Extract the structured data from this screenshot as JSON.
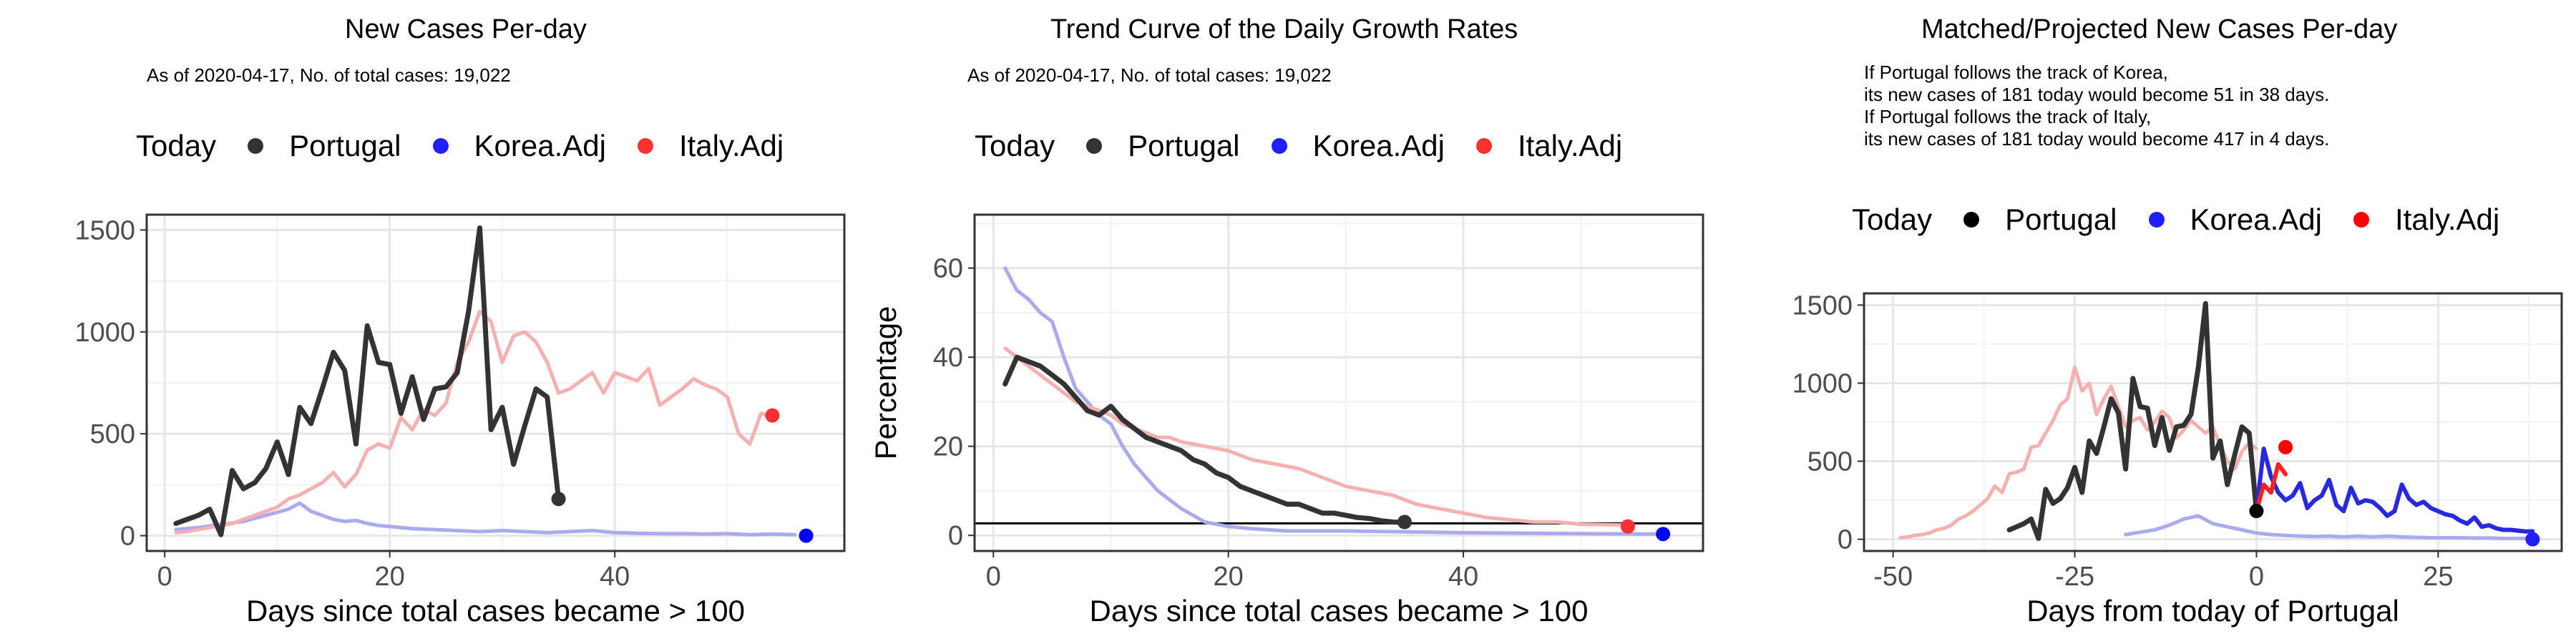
{
  "legend": {
    "title": "Today",
    "items": [
      {
        "label": "Portugal",
        "color": "#333333"
      },
      {
        "label": "Korea.Adj",
        "color": "#1f1fff"
      },
      {
        "label": "Italy.Adj",
        "color": "#ff3030"
      }
    ]
  },
  "panels": [
    {
      "title": "New Cases Per-day",
      "subtitle_lines": [
        "As of 2020-04-17, No. of total cases: 19,022"
      ],
      "legend_dot_colors": [
        "#333333",
        "#1f1fff",
        "#ff3030"
      ]
    },
    {
      "title": "Trend Curve of the Daily Growth Rates",
      "subtitle_lines": [
        "As of 2020-04-17, No. of total cases: 19,022"
      ],
      "legend_dot_colors": [
        "#333333",
        "#1f1fff",
        "#ff3030"
      ]
    },
    {
      "title": "Matched/Projected New Cases Per-day",
      "subtitle_lines": [
        "If Portugal follows the track of Korea,",
        "its new cases of 181 today would become 51 in 38 days.",
        "If Portugal follows the track of Italy,",
        "its new cases of 181 today would become 417 in 4 days."
      ],
      "legend_dot_colors": [
        "#000000",
        "#1f1fff",
        "#ff0000"
      ]
    }
  ],
  "chart_data": [
    {
      "type": "line",
      "title": "New Cases Per-day",
      "xlabel": "Days since total cases became > 100",
      "ylabel": "",
      "xlim": [
        -1.6,
        60.4
      ],
      "ylim": [
        -75,
        1575
      ],
      "xticks": [
        0,
        20,
        40
      ],
      "yticks": [
        0,
        500,
        1000,
        1500
      ],
      "grid": true,
      "series": [
        {
          "name": "Korea.Adj",
          "color": "#aaaaee",
          "width": 5,
          "x": [
            1,
            3,
            5,
            7,
            9,
            11,
            12,
            13,
            14,
            15,
            16,
            17,
            18,
            19,
            20,
            22,
            24,
            26,
            28,
            30,
            32,
            34,
            36,
            38,
            40,
            42,
            44,
            46,
            48,
            50,
            52,
            54,
            56
          ],
          "y": [
            30,
            40,
            55,
            70,
            100,
            130,
            160,
            120,
            100,
            80,
            70,
            75,
            60,
            50,
            45,
            35,
            30,
            25,
            20,
            25,
            20,
            15,
            20,
            25,
            15,
            12,
            10,
            10,
            8,
            10,
            5,
            8,
            5
          ]
        },
        {
          "name": "Italy.Adj",
          "color": "#f7b0b0",
          "width": 5,
          "x": [
            1,
            2,
            3,
            4,
            5,
            6,
            7,
            8,
            9,
            10,
            11,
            12,
            13,
            14,
            15,
            16,
            17,
            18,
            19,
            20,
            21,
            22,
            23,
            24,
            25,
            26,
            27,
            28,
            29,
            30,
            31,
            32,
            33,
            34,
            35,
            36,
            37,
            38,
            39,
            40,
            41,
            42,
            43,
            44,
            45,
            46,
            47,
            48,
            49,
            50,
            51,
            52,
            53,
            54
          ],
          "y": [
            15,
            20,
            30,
            40,
            50,
            60,
            80,
            100,
            120,
            140,
            180,
            200,
            230,
            260,
            310,
            240,
            300,
            420,
            450,
            430,
            580,
            520,
            620,
            590,
            650,
            850,
            950,
            1100,
            1050,
            850,
            980,
            1000,
            950,
            850,
            700,
            720,
            760,
            800,
            700,
            800,
            780,
            760,
            820,
            640,
            680,
            720,
            770,
            740,
            720,
            680,
            500,
            450,
            600,
            580
          ]
        },
        {
          "name": "Portugal",
          "color": "#333333",
          "width": 7,
          "x": [
            1,
            2,
            3,
            4,
            5,
            6,
            7,
            8,
            9,
            10,
            11,
            12,
            13,
            14,
            15,
            16,
            17,
            18,
            19,
            20,
            21,
            22,
            23,
            24,
            25,
            26,
            27,
            28,
            29,
            30,
            31,
            32,
            33,
            34,
            35
          ],
          "y": [
            60,
            80,
            100,
            130,
            5,
            320,
            230,
            260,
            330,
            460,
            300,
            630,
            550,
            720,
            900,
            810,
            450,
            1030,
            850,
            840,
            600,
            780,
            570,
            720,
            730,
            800,
            1100,
            1510,
            520,
            630,
            350,
            540,
            720,
            680,
            180
          ]
        }
      ],
      "today_points": [
        {
          "series": "Portugal",
          "x": 35,
          "y": 180,
          "color": "#333333"
        },
        {
          "series": "Korea.Adj",
          "x": 57,
          "y": 0,
          "color": "#0000ff"
        },
        {
          "series": "Italy.Adj",
          "x": 54,
          "y": 590,
          "color": "#ff3030"
        }
      ]
    },
    {
      "type": "line",
      "title": "Trend Curve of the Daily Growth Rates",
      "xlabel": "Days since total cases became > 100",
      "ylabel": "Percentage",
      "xlim": [
        -1.6,
        60.4
      ],
      "ylim": [
        -3.5,
        72
      ],
      "xticks": [
        0,
        20,
        40
      ],
      "yticks": [
        0,
        20,
        40,
        60
      ],
      "grid": true,
      "hline": 2.7,
      "series": [
        {
          "name": "Korea.Adj",
          "color": "#aaaaee",
          "width": 5,
          "x": [
            1,
            2,
            3,
            4,
            5,
            6,
            7,
            8,
            9,
            10,
            11,
            12,
            14,
            16,
            18,
            20,
            22,
            25,
            30,
            35,
            40,
            45,
            50,
            55,
            57
          ],
          "y": [
            60,
            55,
            53,
            50,
            48,
            40,
            33,
            30,
            27,
            25,
            20,
            16,
            10,
            6,
            3,
            2,
            1.5,
            1,
            1,
            0.8,
            0.6,
            0.5,
            0.4,
            0.3,
            0.3
          ]
        },
        {
          "name": "Italy.Adj",
          "color": "#f7b0b0",
          "width": 5,
          "x": [
            1,
            2,
            3,
            4,
            5,
            6,
            7,
            8,
            9,
            10,
            11,
            12,
            13,
            14,
            15,
            16,
            18,
            20,
            22,
            24,
            26,
            28,
            30,
            32,
            34,
            36,
            38,
            40,
            42,
            44,
            46,
            48,
            50,
            52,
            54
          ],
          "y": [
            42,
            40,
            38,
            36,
            34,
            32,
            30,
            29,
            28,
            27,
            25,
            24,
            23,
            22,
            22,
            21,
            20,
            19,
            17,
            16,
            15,
            13,
            11,
            10,
            9,
            7,
            6,
            5,
            4,
            3.5,
            3,
            3,
            2.5,
            2.4,
            2.3
          ]
        },
        {
          "name": "Portugal",
          "color": "#333333",
          "width": 7,
          "x": [
            1,
            2,
            3,
            4,
            5,
            6,
            7,
            8,
            9,
            10,
            11,
            12,
            13,
            14,
            15,
            16,
            17,
            18,
            19,
            20,
            21,
            22,
            23,
            24,
            25,
            26,
            27,
            28,
            29,
            30,
            31,
            32,
            33,
            34,
            35
          ],
          "y": [
            34,
            40,
            39,
            38,
            36,
            34,
            31,
            28,
            27,
            29,
            26,
            24,
            22,
            21,
            20,
            19,
            17,
            16,
            14,
            13,
            11,
            10,
            9,
            8,
            7,
            7,
            6,
            5,
            5,
            4.5,
            4,
            3.8,
            3.3,
            3,
            2.9
          ]
        }
      ],
      "today_points": [
        {
          "series": "Portugal",
          "x": 35,
          "y": 3,
          "color": "#333333"
        },
        {
          "series": "Korea.Adj",
          "x": 57,
          "y": 0.3,
          "color": "#0000ff"
        },
        {
          "series": "Italy.Adj",
          "x": 54,
          "y": 2,
          "color": "#ff3030"
        }
      ]
    },
    {
      "type": "line",
      "title": "Matched/Projected New Cases Per-day",
      "xlabel": "Days from today of Portugal",
      "ylabel": "",
      "xlim": [
        -54,
        42
      ],
      "ylim": [
        -75,
        1575
      ],
      "xticks": [
        -50,
        -25,
        0,
        25
      ],
      "yticks": [
        0,
        500,
        1000,
        1500
      ],
      "grid": true,
      "series": [
        {
          "name": "Italy.Adj",
          "color": "#f7b0b0",
          "width": 5,
          "x": [
            -49,
            -48,
            -47,
            -46,
            -45,
            -44,
            -43,
            -42,
            -41,
            -40,
            -39,
            -38,
            -37,
            -36,
            -35,
            -34,
            -33,
            -32,
            -31,
            -30,
            -29,
            -28,
            -27,
            -26,
            -25,
            -24,
            -23,
            -22,
            -21,
            -20,
            -19,
            -18,
            -17,
            -16,
            -15,
            -14,
            -13,
            -12,
            -11,
            -10,
            -9,
            -8,
            -7,
            -6,
            -5,
            -4,
            -3,
            -2,
            -1,
            0
          ],
          "y": [
            10,
            15,
            25,
            30,
            40,
            60,
            70,
            90,
            130,
            150,
            180,
            220,
            260,
            340,
            300,
            420,
            430,
            450,
            590,
            600,
            680,
            760,
            860,
            900,
            1100,
            950,
            1000,
            800,
            900,
            980,
            850,
            720,
            760,
            780,
            700,
            750,
            820,
            780,
            650,
            700,
            760,
            720,
            680,
            720,
            600,
            500,
            450,
            560,
            620,
            580
          ]
        },
        {
          "name": "Korea.Adj",
          "color": "#aaaaee",
          "width": 5,
          "x": [
            -18,
            -16,
            -14,
            -12,
            -10,
            -8,
            -6,
            -4,
            -2,
            0,
            2,
            4,
            6,
            8,
            10,
            12,
            14,
            16,
            18,
            20,
            22,
            24,
            26,
            28,
            30,
            32,
            34,
            36,
            38
          ],
          "y": [
            30,
            45,
            60,
            90,
            130,
            150,
            100,
            80,
            60,
            40,
            30,
            25,
            20,
            18,
            20,
            15,
            20,
            15,
            20,
            15,
            12,
            10,
            10,
            10,
            8,
            8,
            5,
            5,
            5
          ]
        },
        {
          "name": "Portugal",
          "color": "#333333",
          "width": 7,
          "x": [
            -34,
            -33,
            -32,
            -31,
            -30,
            -29,
            -28,
            -27,
            -26,
            -25,
            -24,
            -23,
            -22,
            -21,
            -20,
            -19,
            -18,
            -17,
            -16,
            -15,
            -14,
            -13,
            -12,
            -11,
            -10,
            -9,
            -8,
            -7,
            -6,
            -5,
            -4,
            -3,
            -2,
            -1,
            0
          ],
          "y": [
            60,
            80,
            100,
            130,
            5,
            320,
            230,
            260,
            330,
            460,
            300,
            630,
            550,
            720,
            900,
            810,
            450,
            1030,
            850,
            840,
            600,
            780,
            570,
            720,
            730,
            800,
            1100,
            1510,
            520,
            630,
            350,
            540,
            720,
            680,
            180
          ]
        },
        {
          "name": "Korea.Adj (projected)",
          "color": "#2828e0",
          "width": 6,
          "x": [
            0,
            1,
            2,
            3,
            4,
            5,
            6,
            7,
            8,
            9,
            10,
            11,
            12,
            13,
            14,
            15,
            16,
            17,
            18,
            19,
            20,
            21,
            22,
            23,
            24,
            25,
            26,
            27,
            28,
            29,
            30,
            31,
            32,
            33,
            34,
            35,
            36,
            37,
            38
          ],
          "y": [
            181,
            580,
            400,
            300,
            250,
            280,
            360,
            200,
            250,
            280,
            380,
            220,
            180,
            330,
            230,
            250,
            240,
            200,
            150,
            180,
            350,
            260,
            220,
            240,
            200,
            180,
            160,
            150,
            120,
            100,
            140,
            80,
            90,
            70,
            60,
            60,
            55,
            50,
            51
          ]
        },
        {
          "name": "Italy.Adj (projected)",
          "color": "#ff2020",
          "width": 6,
          "x": [
            0,
            1,
            2,
            3,
            4
          ],
          "y": [
            181,
            350,
            300,
            480,
            417
          ]
        }
      ],
      "today_points": [
        {
          "series": "Portugal",
          "x": 0,
          "y": 181,
          "color": "#000000"
        },
        {
          "series": "Korea.Adj",
          "x": 38,
          "y": 0,
          "color": "#1f1fff"
        },
        {
          "series": "Italy.Adj",
          "x": 4,
          "y": 590,
          "color": "#ff0000"
        }
      ]
    }
  ]
}
